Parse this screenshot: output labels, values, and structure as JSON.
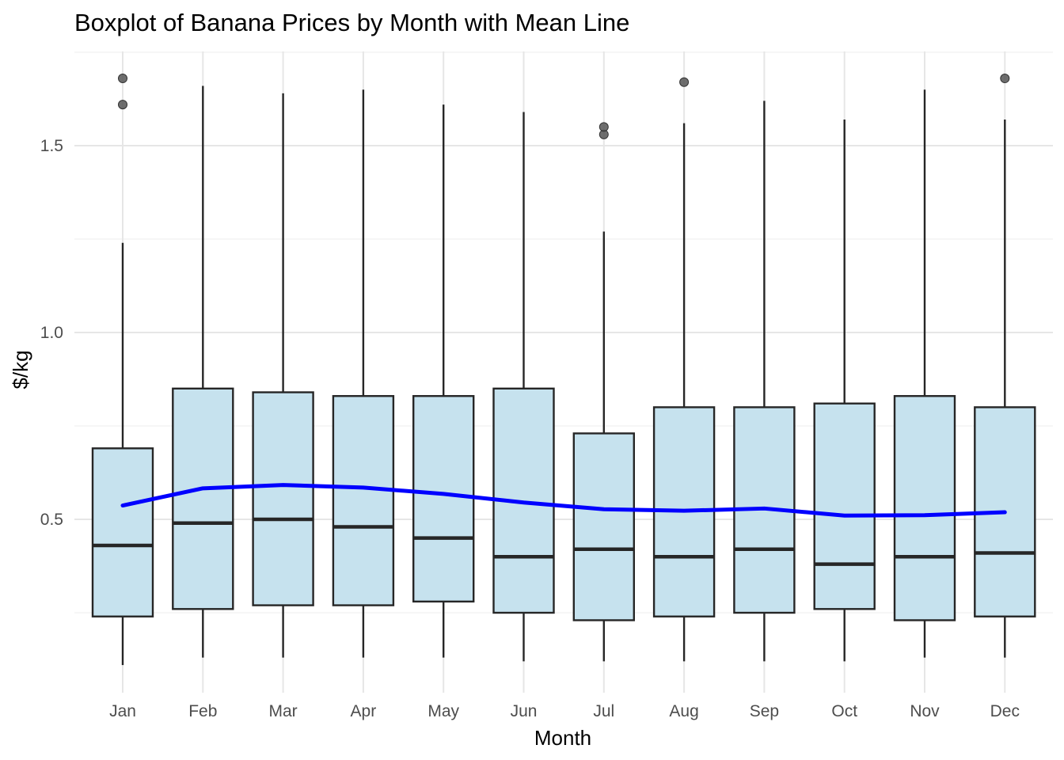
{
  "chart_data": {
    "type": "boxplot",
    "title": "Boxplot of Banana Prices by Month with Mean Line",
    "xlabel": "Month",
    "ylabel": "$/kg",
    "ylim": [
      0.1,
      1.75
    ],
    "yticks": [
      0.5,
      1.0,
      1.5
    ],
    "ytick_labels": [
      "0.5",
      "1.0",
      "1.5"
    ],
    "grid": true,
    "categories": [
      "Jan",
      "Feb",
      "Mar",
      "Apr",
      "May",
      "Jun",
      "Jul",
      "Aug",
      "Sep",
      "Oct",
      "Nov",
      "Dec"
    ],
    "boxes": [
      {
        "whisker_low": 0.11,
        "q1": 0.24,
        "median": 0.43,
        "q3": 0.69,
        "whisker_high": 1.24,
        "outliers": [
          1.61,
          1.68
        ]
      },
      {
        "whisker_low": 0.13,
        "q1": 0.26,
        "median": 0.49,
        "q3": 0.85,
        "whisker_high": 1.66,
        "outliers": []
      },
      {
        "whisker_low": 0.13,
        "q1": 0.27,
        "median": 0.5,
        "q3": 0.84,
        "whisker_high": 1.64,
        "outliers": []
      },
      {
        "whisker_low": 0.13,
        "q1": 0.27,
        "median": 0.48,
        "q3": 0.83,
        "whisker_high": 1.65,
        "outliers": []
      },
      {
        "whisker_low": 0.13,
        "q1": 0.28,
        "median": 0.45,
        "q3": 0.83,
        "whisker_high": 1.61,
        "outliers": []
      },
      {
        "whisker_low": 0.12,
        "q1": 0.25,
        "median": 0.4,
        "q3": 0.85,
        "whisker_high": 1.59,
        "outliers": []
      },
      {
        "whisker_low": 0.12,
        "q1": 0.23,
        "median": 0.42,
        "q3": 0.73,
        "whisker_high": 1.27,
        "outliers": [
          1.53,
          1.55
        ]
      },
      {
        "whisker_low": 0.12,
        "q1": 0.24,
        "median": 0.4,
        "q3": 0.8,
        "whisker_high": 1.56,
        "outliers": [
          1.67
        ]
      },
      {
        "whisker_low": 0.12,
        "q1": 0.25,
        "median": 0.42,
        "q3": 0.8,
        "whisker_high": 1.62,
        "outliers": []
      },
      {
        "whisker_low": 0.12,
        "q1": 0.26,
        "median": 0.38,
        "q3": 0.81,
        "whisker_high": 1.57,
        "outliers": []
      },
      {
        "whisker_low": 0.13,
        "q1": 0.23,
        "median": 0.4,
        "q3": 0.83,
        "whisker_high": 1.65,
        "outliers": []
      },
      {
        "whisker_low": 0.13,
        "q1": 0.24,
        "median": 0.41,
        "q3": 0.8,
        "whisker_high": 1.57,
        "outliers": [
          1.68
        ]
      }
    ],
    "mean_line": [
      0.537,
      0.583,
      0.592,
      0.585,
      0.568,
      0.545,
      0.527,
      0.523,
      0.529,
      0.51,
      0.511,
      0.519
    ],
    "colors": {
      "box_fill": "#c6e2ee",
      "box_stroke": "#262626",
      "mean_line": "#0000ff",
      "outlier": "#555555",
      "grid_major": "#e6e6e6",
      "grid_minor": "#f0f0f0"
    }
  }
}
